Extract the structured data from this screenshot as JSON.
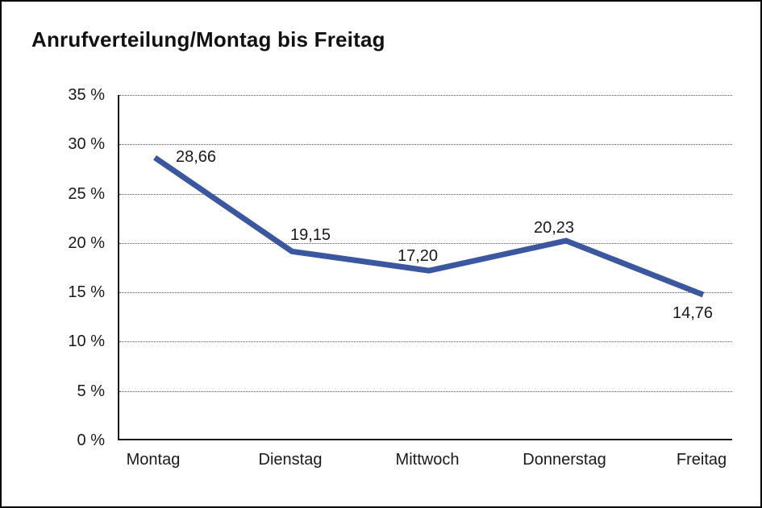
{
  "title": "Anrufverteilung/Montag bis Freitag",
  "colors": {
    "line": "#3A57A0",
    "axis": "#1a1a1a",
    "grid": "#555555",
    "frame_border": "#000000",
    "text": "#1a1a1a",
    "background": "#ffffff"
  },
  "chart_data": {
    "type": "line",
    "title": "Anrufverteilung/Montag bis Freitag",
    "categories": [
      "Montag",
      "Dienstag",
      "Mittwoch",
      "Donnerstag",
      "Freitag"
    ],
    "values": [
      28.66,
      19.15,
      17.2,
      20.23,
      14.76
    ],
    "data_labels": [
      "28,66",
      "19,15",
      "17,20",
      "20,23",
      "14,76"
    ],
    "xlabel": "",
    "ylabel": "",
    "ylim": [
      0,
      35
    ],
    "ytick_step": 5,
    "ytick_labels": [
      "0 %",
      "5 %",
      "10 %",
      "15 %",
      "20 %",
      "25 %",
      "30 %",
      "35 %"
    ],
    "grid": "horizontal-dotted",
    "legend_position": "none"
  }
}
